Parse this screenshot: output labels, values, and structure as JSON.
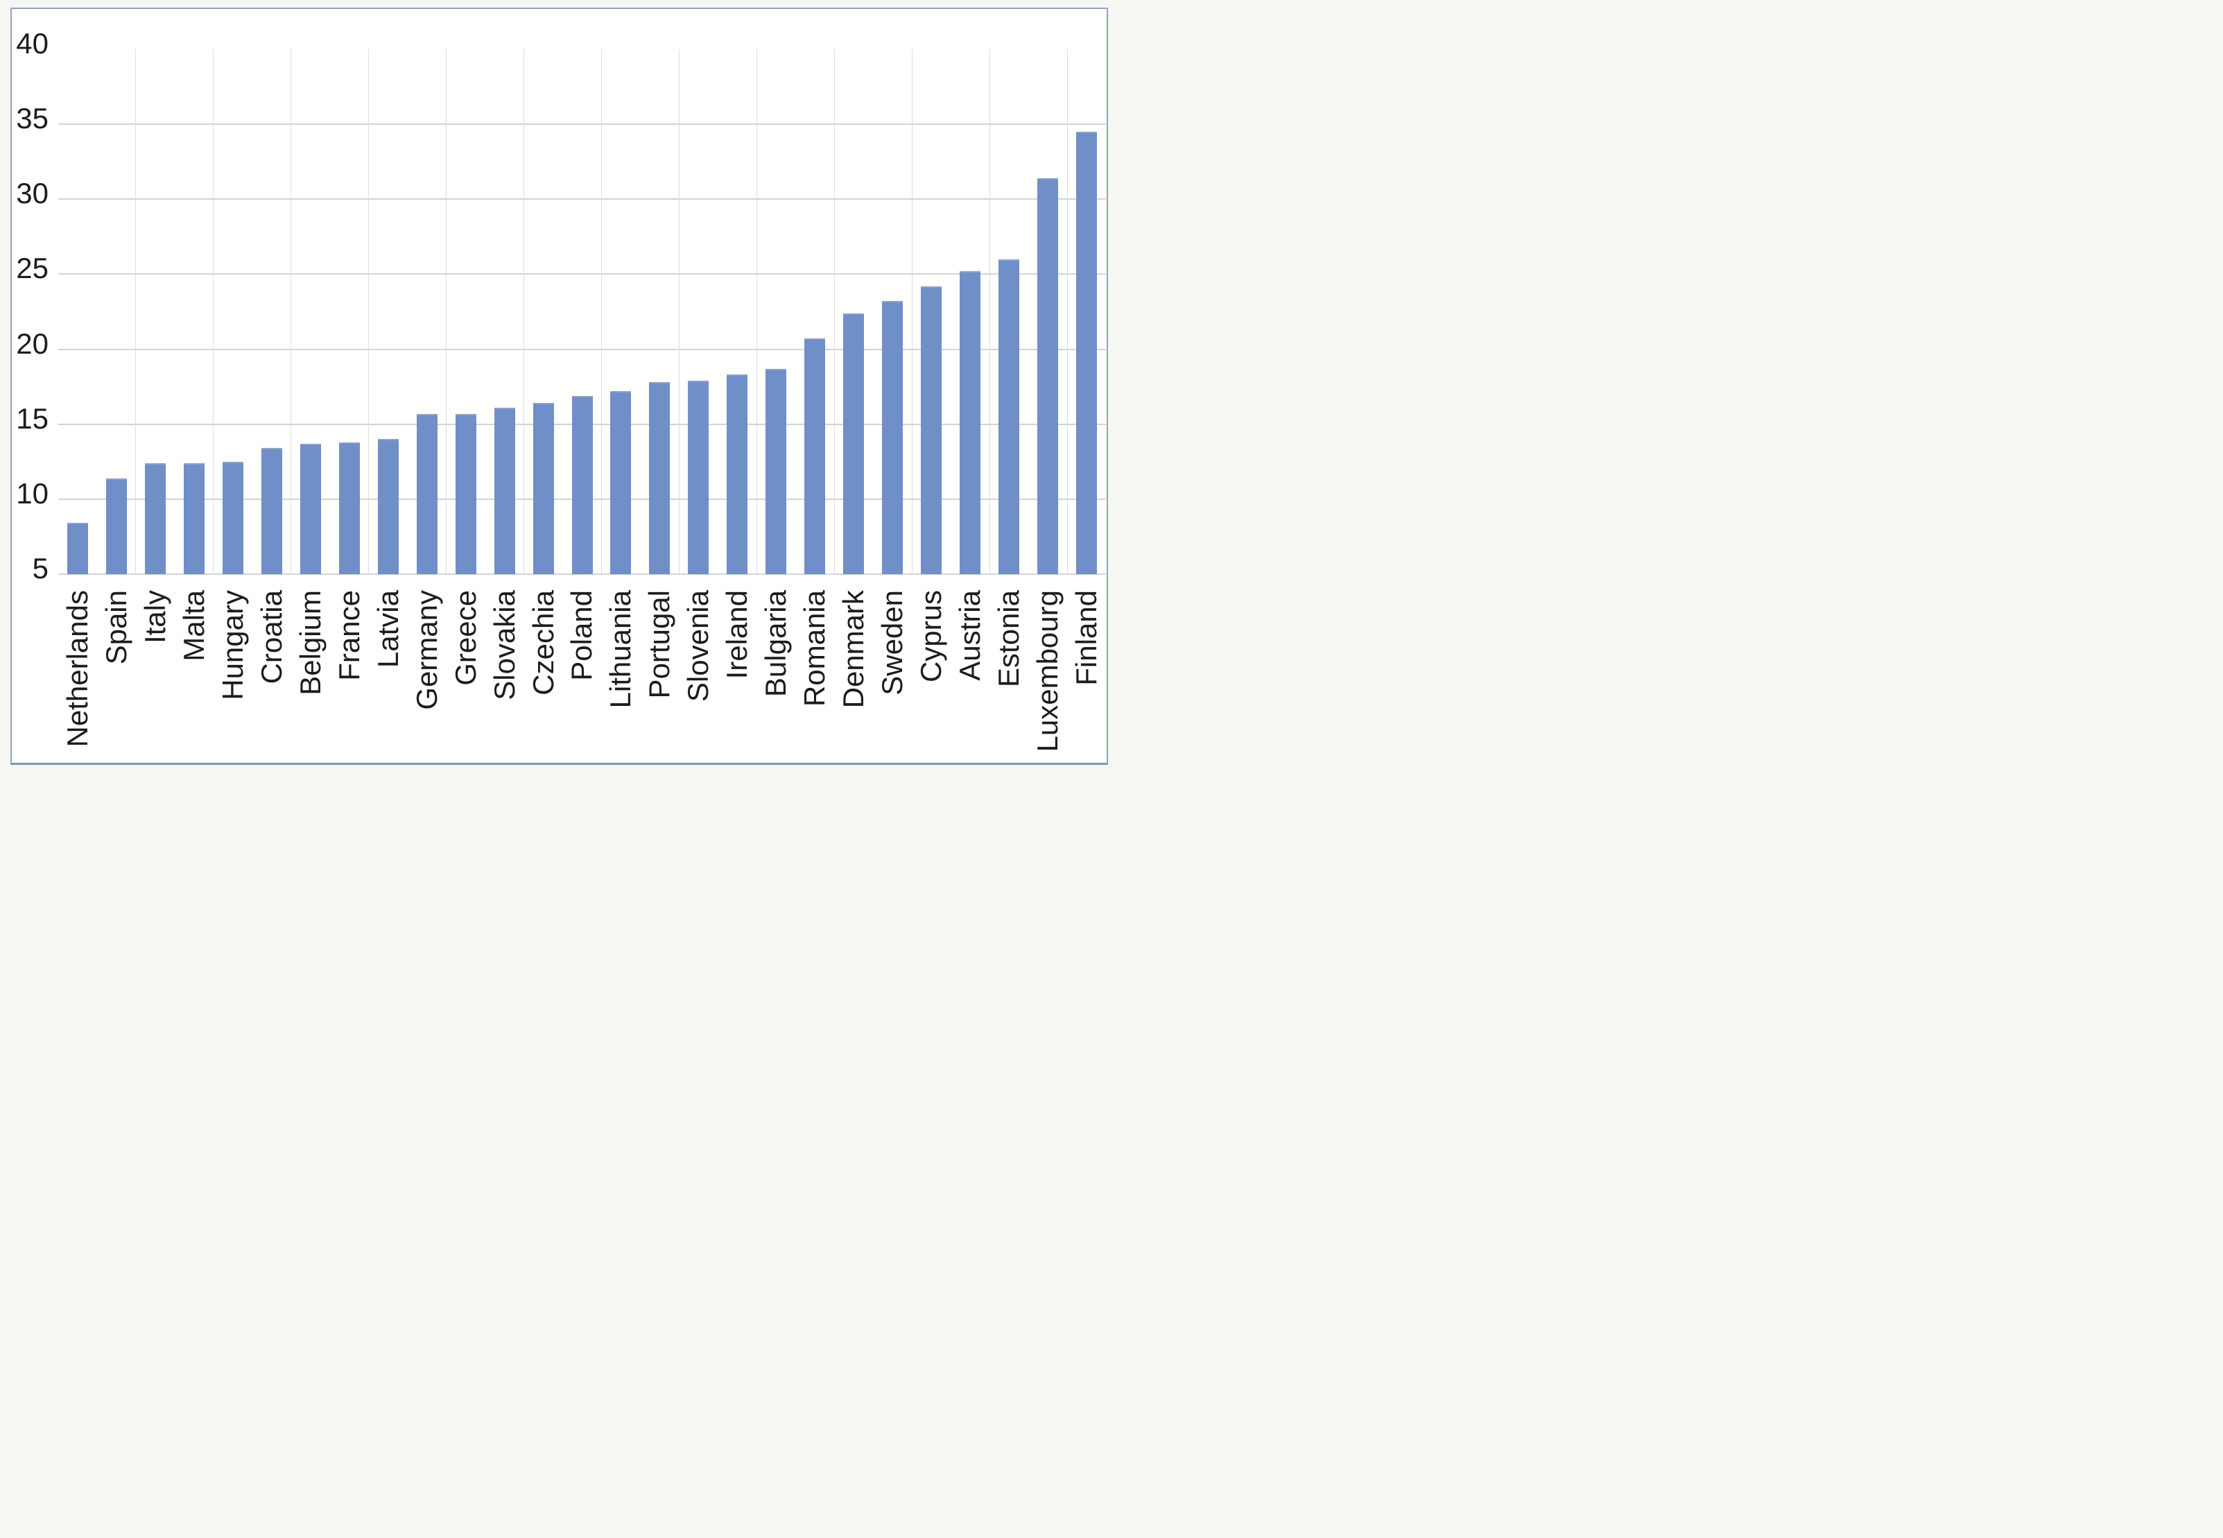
{
  "chart_data": {
    "type": "bar",
    "title": "",
    "xlabel": "",
    "ylabel": "",
    "categories": [
      "Netherlands",
      "Spain",
      "Italy",
      "Malta",
      "Hungary",
      "Croatia",
      "Belgium",
      "France",
      "Latvia",
      "Germany",
      "Greece",
      "Slovakia",
      "Czechia",
      "Poland",
      "Lithuania",
      "Portugal",
      "Slovenia",
      "Ireland",
      "Bulgaria",
      "Romania",
      "Denmark",
      "Sweden",
      "Cyprus",
      "Austria",
      "Estonia",
      "Luxembourg",
      "Finland"
    ],
    "values": [
      8.4,
      11.4,
      12.4,
      12.4,
      12.5,
      13.4,
      13.7,
      13.8,
      14.0,
      15.7,
      15.7,
      16.1,
      16.4,
      16.9,
      17.2,
      17.8,
      17.9,
      18.3,
      18.7,
      20.7,
      22.4,
      23.2,
      24.2,
      25.2,
      26.0,
      31.4,
      34.5
    ],
    "ylim": [
      5,
      40
    ],
    "yticks": [
      40,
      35,
      30,
      25,
      20,
      15,
      10,
      5
    ],
    "legend": "none",
    "grid": "horizontal major lines at 5-unit steps; vertical lines every 2 categories; no gridline at 40",
    "x_labels_rotation": "90deg bottom-to-top, end-aligned at axis",
    "colors": {
      "bar_fill": "#708ec8",
      "bar_top_edge": "#93a2bc",
      "hgrid": "#d2d3d4",
      "vgrid": "#dcdcdc",
      "axis_text": "#1c1c1c",
      "chart_border": "#8fa4c2",
      "chart_border_bottom": "#7e94b4",
      "chart_background": "#fffffe",
      "page_background": "#f6f6f3"
    }
  }
}
